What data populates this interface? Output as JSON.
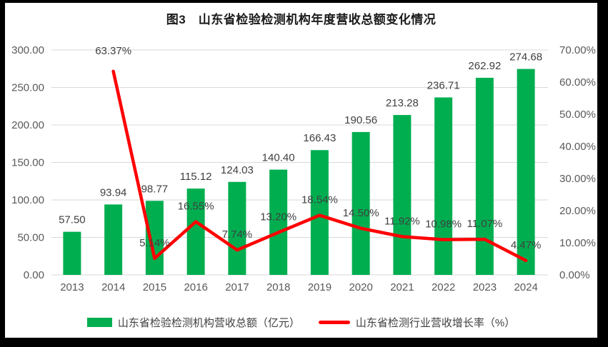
{
  "chart_data": {
    "type": "combo-bar-line",
    "title": "图3　山东省检验检测机构年度营收总额变化情况",
    "categories": [
      "2013",
      "2014",
      "2015",
      "2016",
      "2017",
      "2018",
      "2019",
      "2020",
      "2021",
      "2022",
      "2023",
      "2024"
    ],
    "series": [
      {
        "name": "山东省检验检测机构营收总额（亿元）",
        "type": "bar",
        "axis": "left",
        "color": "#00AE50",
        "values": [
          57.5,
          93.94,
          98.77,
          115.12,
          124.03,
          140.4,
          166.43,
          190.56,
          213.28,
          236.71,
          262.92,
          274.68
        ],
        "labels": [
          "57.50",
          "93.94",
          "98.77",
          "115.12",
          "124.03",
          "140.40",
          "166.43",
          "190.56",
          "213.28",
          "236.71",
          "262.92",
          "274.68"
        ]
      },
      {
        "name": "山东省检测行业营收增长率（%）",
        "type": "line",
        "axis": "right",
        "color": "#FF0000",
        "values": [
          null,
          63.37,
          5.14,
          16.55,
          7.74,
          13.2,
          18.54,
          14.5,
          11.92,
          10.98,
          11.07,
          4.47
        ],
        "labels": [
          "",
          "63.37%",
          "5.14%",
          "16.55%",
          "7.74%",
          "13.20%",
          "18.54%",
          "14.50%",
          "11.92%",
          "10.98%",
          "11.07%",
          "4.47%"
        ],
        "label_dy": [
          0,
          -24,
          -17,
          -17,
          -17,
          -17,
          -17,
          -17,
          -17,
          -17,
          -17,
          -17
        ]
      }
    ],
    "left_axis": {
      "min": 0,
      "max": 300,
      "step": 50,
      "tick_labels": [
        "0.00",
        "50.00",
        "100.00",
        "150.00",
        "200.00",
        "250.00",
        "300.00"
      ]
    },
    "right_axis": {
      "min": 0,
      "max": 70,
      "step": 10,
      "tick_labels": [
        "0.00%",
        "10.00%",
        "20.00%",
        "30.00%",
        "40.00%",
        "50.00%",
        "60.00%",
        "70.00%"
      ]
    },
    "grid": true,
    "legend_position": "bottom",
    "colors": {
      "grid": "#D9D9D9",
      "axis_text": "#595959",
      "label_text": "#404040",
      "frame": "#000000",
      "background": "#FFFFFF"
    }
  }
}
